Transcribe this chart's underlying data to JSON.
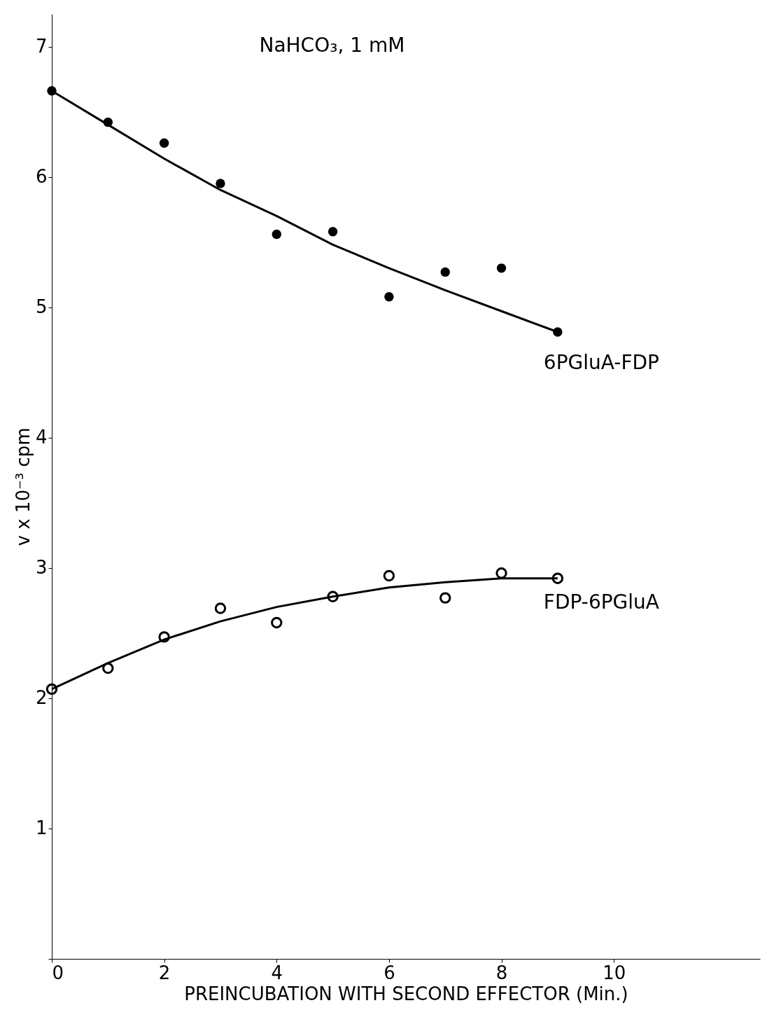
{
  "chart_data": {
    "type": "scatter",
    "title": "NaHCO₃, 1 mM",
    "xlabel": "PREINCUBATION WITH SECOND EFFECTOR (Min.)",
    "ylabel": "v x 10⁻³     cpm",
    "xlim": [
      0,
      12.6
    ],
    "ylim": [
      0,
      7.25
    ],
    "xticks": [
      0,
      2,
      4,
      6,
      8,
      10
    ],
    "yticks": [
      {
        "value": 0,
        "label": null
      },
      1,
      2,
      3,
      4,
      5,
      6,
      7
    ],
    "grid": false,
    "series": [
      {
        "name": "6PGluA-FDP",
        "color": "#000000",
        "marker": "circle",
        "x": [
          0,
          1,
          2,
          3,
          4,
          5,
          6,
          7,
          8,
          9
        ],
        "values": [
          6.66,
          6.42,
          6.26,
          5.95,
          5.56,
          5.58,
          5.08,
          5.27,
          5.3,
          4.81
        ]
      },
      {
        "name": "FDP-6PGluA",
        "color": "#000000",
        "marker": "circle",
        "x": [
          0,
          1,
          2,
          3,
          4,
          5,
          6,
          7,
          8,
          9
        ],
        "values": [
          2.07,
          2.23,
          2.47,
          2.69,
          2.58,
          2.78,
          2.94,
          2.77,
          2.96,
          2.92
        ]
      },
      {
        "type": "line",
        "color": "#000000",
        "marker": "none",
        "line_style": "solid",
        "x": [
          0,
          1,
          2,
          3,
          4,
          5,
          6,
          7,
          8,
          9
        ],
        "values": [
          6.66,
          6.4,
          6.14,
          5.9,
          5.7,
          5.48,
          5.3,
          5.13,
          4.97,
          4.81
        ]
      },
      {
        "type": "line",
        "color": "#000000",
        "marker": "none",
        "line_style": "solid",
        "x": [
          0,
          1,
          2,
          3,
          4,
          5,
          6,
          7,
          8,
          9
        ],
        "values": [
          2.07,
          2.27,
          2.45,
          2.59,
          2.7,
          2.78,
          2.85,
          2.89,
          2.92,
          2.92
        ]
      }
    ]
  }
}
